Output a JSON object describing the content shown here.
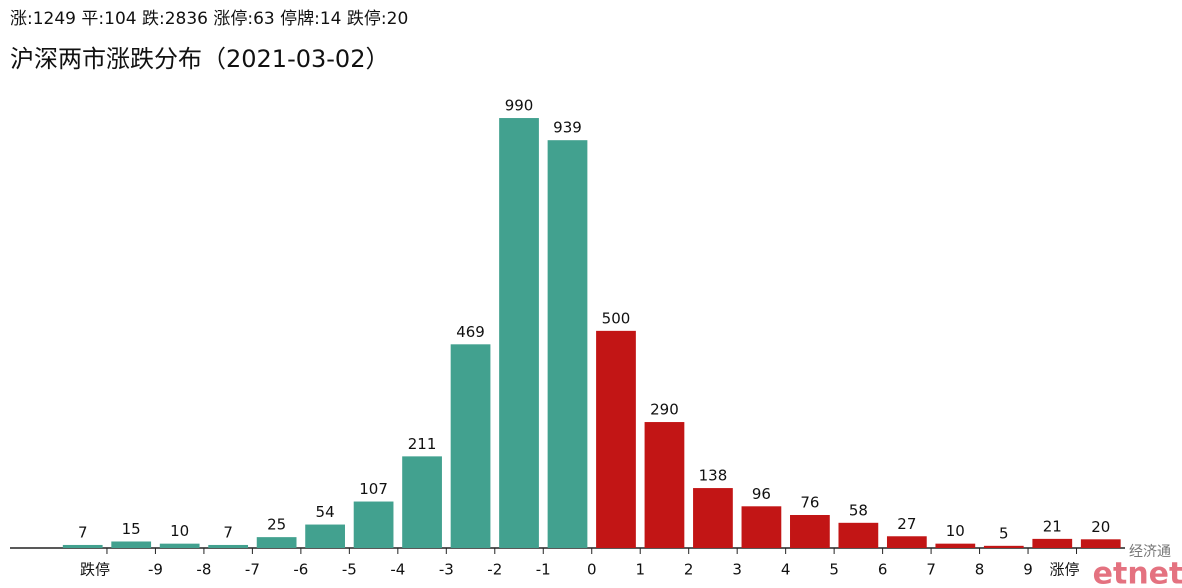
{
  "chart_data": {
    "type": "bar",
    "subtitle": "涨:1249 平:104 跌:2836 涨停:63 停牌:14 跌停:20",
    "title": "沪深两市涨跌分布（2021-03-02）",
    "x": [
      -10.5,
      -9.5,
      -8.5,
      -7.5,
      -6.5,
      -5.5,
      -4.5,
      -3.5,
      -2.5,
      -1.5,
      -0.5,
      0.5,
      1.5,
      2.5,
      3.5,
      4.5,
      5.5,
      6.5,
      7.5,
      8.5,
      9.5,
      10.5
    ],
    "values": [
      7,
      15,
      10,
      7,
      25,
      54,
      107,
      211,
      469,
      990,
      939,
      500,
      290,
      138,
      96,
      76,
      58,
      27,
      10,
      5,
      21,
      20
    ],
    "colors": [
      "#42a18f",
      "#42a18f",
      "#42a18f",
      "#42a18f",
      "#42a18f",
      "#42a18f",
      "#42a18f",
      "#42a18f",
      "#42a18f",
      "#42a18f",
      "#42a18f",
      "#c21515",
      "#c21515",
      "#c21515",
      "#c21515",
      "#c21515",
      "#c21515",
      "#c21515",
      "#c21515",
      "#c21515",
      "#c21515",
      "#c21515"
    ],
    "xlim": [
      -12,
      11
    ],
    "xticks": [
      {
        "value": -10,
        "label": "跌停"
      },
      -9,
      -8,
      -7,
      -6,
      -5,
      -4,
      -3,
      -2,
      -1,
      0,
      1,
      2,
      3,
      4,
      5,
      6,
      7,
      8,
      9,
      {
        "value": 10,
        "label": "涨停"
      }
    ],
    "ylim": [
      0,
      1000
    ],
    "watermark": [
      "经济通",
      "etnet"
    ]
  }
}
